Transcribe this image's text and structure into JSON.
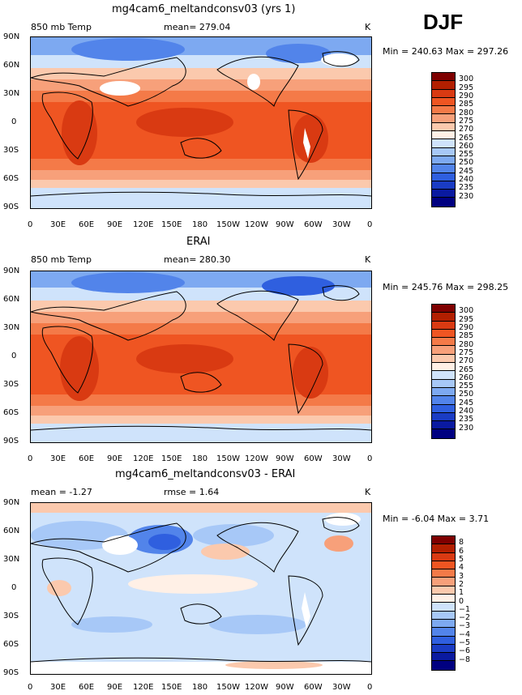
{
  "season": "DJF",
  "axes": {
    "lat_labels": [
      "90N",
      "60N",
      "30N",
      "0",
      "30S",
      "60S",
      "90S"
    ],
    "lon_labels": [
      "0",
      "30E",
      "60E",
      "90E",
      "120E",
      "150E",
      "180",
      "150W",
      "120W",
      "90W",
      "60W",
      "30W",
      "0"
    ]
  },
  "panels": [
    {
      "title": "mg4cam6_meltandconsv03 (yrs 1)",
      "left_label": "850 mb Temp",
      "center_label": "mean= 279.04",
      "right_label": "K",
      "minmax": "Min = 240.63 Max = 297.26",
      "colorbar": {
        "labels": [
          "300",
          "295",
          "290",
          "285",
          "280",
          "275",
          "270",
          "265",
          "260",
          "255",
          "250",
          "245",
          "240",
          "235",
          "230"
        ],
        "colors": [
          "#7f0000",
          "#b21f00",
          "#d93a12",
          "#ef5522",
          "#f47a48",
          "#f7a07a",
          "#fbc9ad",
          "#fff0e6",
          "#cfe3fb",
          "#a7c8f7",
          "#7da9f1",
          "#5284ea",
          "#2f5fdf",
          "#1a3cc4",
          "#0a1aa0",
          "#000080"
        ]
      }
    },
    {
      "title": "ERAI",
      "left_label": "850 mb Temp",
      "center_label": "mean= 280.30",
      "right_label": "K",
      "minmax": "Min = 245.76 Max = 298.25",
      "colorbar": {
        "labels": [
          "300",
          "295",
          "290",
          "285",
          "280",
          "275",
          "270",
          "265",
          "260",
          "255",
          "250",
          "245",
          "240",
          "235",
          "230"
        ],
        "colors": [
          "#7f0000",
          "#b21f00",
          "#d93a12",
          "#ef5522",
          "#f47a48",
          "#f7a07a",
          "#fbc9ad",
          "#fff0e6",
          "#cfe3fb",
          "#a7c8f7",
          "#7da9f1",
          "#5284ea",
          "#2f5fdf",
          "#1a3cc4",
          "#0a1aa0",
          "#000080"
        ]
      }
    },
    {
      "title": "mg4cam6_meltandconsv03 - ERAI",
      "left_label": "mean =  -1.27",
      "center_label": "rmse =   1.64",
      "right_label": "K",
      "minmax": "Min =  -6.04 Max =   3.71",
      "colorbar": {
        "labels": [
          "8",
          "6",
          "5",
          "4",
          "3",
          "2",
          "1",
          "0",
          "−1",
          "−2",
          "−3",
          "−4",
          "−5",
          "−6",
          "−8"
        ],
        "colors": [
          "#7f0000",
          "#b21f00",
          "#d93a12",
          "#ef5522",
          "#f47a48",
          "#f7a07a",
          "#fbc9ad",
          "#fff0e6",
          "#cfe3fb",
          "#a7c8f7",
          "#7da9f1",
          "#5284ea",
          "#2f5fdf",
          "#1a3cc4",
          "#0a1aa0",
          "#000080"
        ]
      }
    }
  ]
}
